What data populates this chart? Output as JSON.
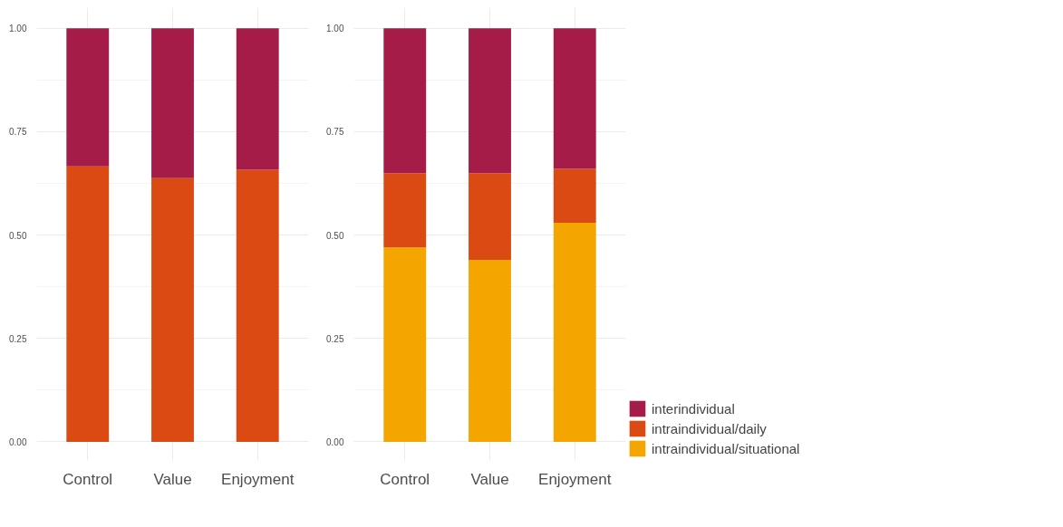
{
  "chart_data": [
    {
      "type": "bar",
      "stacked": true,
      "categories": [
        "Control",
        "Value",
        "Enjoyment"
      ],
      "ylim": [
        -0.045,
        1.05
      ],
      "yticks": [
        {
          "value": 0,
          "label": "0.00"
        },
        {
          "value": 0.25,
          "label": "0.25"
        },
        {
          "value": 0.5,
          "label": "0.50"
        },
        {
          "value": 0.75,
          "label": "0.75"
        },
        {
          "value": 1,
          "label": "1.00"
        }
      ],
      "grid": true,
      "legend": "bottom right",
      "series": [
        {
          "name": "intraindividual/daily",
          "color": "#dc4a14",
          "values": [
            0.666,
            0.638,
            0.658
          ]
        },
        {
          "name": "interindividual",
          "color": "#a51c48",
          "values": [
            0.334,
            0.362,
            0.342
          ]
        }
      ]
    },
    {
      "type": "bar",
      "stacked": true,
      "categories": [
        "Control",
        "Value",
        "Enjoyment"
      ],
      "ylim": [
        -0.045,
        1.05
      ],
      "yticks": [
        {
          "value": 0,
          "label": "0.00"
        },
        {
          "value": 0.25,
          "label": "0.25"
        },
        {
          "value": 0.5,
          "label": "0.50"
        },
        {
          "value": 0.75,
          "label": "0.75"
        },
        {
          "value": 1,
          "label": "1.00"
        }
      ],
      "grid": true,
      "legend": "bottom right",
      "series": [
        {
          "name": "intraindividual/situational",
          "color": "#f4a500",
          "values": [
            0.47,
            0.44,
            0.53
          ]
        },
        {
          "name": "intraindividual/daily",
          "color": "#dc4a14",
          "values": [
            0.18,
            0.21,
            0.13
          ]
        },
        {
          "name": "interindividual",
          "color": "#a51c48",
          "values": [
            0.35,
            0.35,
            0.34
          ]
        }
      ]
    }
  ]
}
